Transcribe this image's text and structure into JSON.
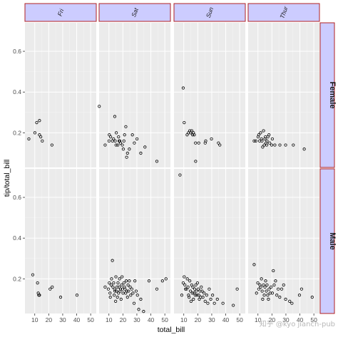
{
  "chart_data": {
    "type": "scatter",
    "facet_columns": [
      "Fri",
      "Sat",
      "Sun",
      "Thur"
    ],
    "facet_rows": [
      "Female",
      "Male"
    ],
    "xlabel": "total_bill",
    "ylabel": "tip/total_bill",
    "xlim": [
      3,
      54
    ],
    "ylim": [
      0.03,
      0.74
    ],
    "x_ticks": [
      10,
      20,
      30,
      40,
      50
    ],
    "y_ticks": [
      0.2,
      0.4,
      0.6
    ],
    "grid": true,
    "colors": {
      "panel_bg": "#ebebeb",
      "grid_major": "#ffffff",
      "strip_fill": "#ccccff",
      "strip_border": "#b22222",
      "point_stroke": "#000000"
    },
    "panels": [
      {
        "column": "Fri",
        "row": "Female",
        "points": [
          [
            5.8,
            0.17
          ],
          [
            10.1,
            0.2
          ],
          [
            11.4,
            0.25
          ],
          [
            13.4,
            0.26
          ],
          [
            13.4,
            0.19
          ],
          [
            14.3,
            0.18
          ],
          [
            15.4,
            0.16
          ],
          [
            22.3,
            0.14
          ]
        ]
      },
      {
        "column": "Sat",
        "row": "Female",
        "points": [
          [
            3.1,
            0.33
          ],
          [
            7.3,
            0.14
          ],
          [
            10.1,
            0.16
          ],
          [
            10.3,
            0.19
          ],
          [
            11.2,
            0.18
          ],
          [
            12.6,
            0.16
          ],
          [
            13.3,
            0.17
          ],
          [
            14.2,
            0.28
          ],
          [
            14.5,
            0.16
          ],
          [
            15.1,
            0.14
          ],
          [
            15.3,
            0.2
          ],
          [
            16.4,
            0.14
          ],
          [
            16.9,
            0.18
          ],
          [
            17.3,
            0.16
          ],
          [
            17.8,
            0.16
          ],
          [
            18.3,
            0.15
          ],
          [
            19.6,
            0.14
          ],
          [
            20.3,
            0.12
          ],
          [
            20.7,
            0.16
          ],
          [
            21.2,
            0.19
          ],
          [
            22.1,
            0.23
          ],
          [
            22.7,
            0.08
          ],
          [
            23.3,
            0.1
          ],
          [
            24.6,
            0.12
          ],
          [
            26.8,
            0.19
          ],
          [
            28.2,
            0.15
          ],
          [
            30.1,
            0.17
          ],
          [
            32.8,
            0.1
          ],
          [
            35.8,
            0.13
          ],
          [
            44.3,
            0.06
          ]
        ]
      },
      {
        "column": "Sun",
        "row": "Female",
        "points": [
          [
            9.6,
            0.42
          ],
          [
            10.3,
            0.25
          ],
          [
            12.4,
            0.19
          ],
          [
            13.4,
            0.2
          ],
          [
            14.3,
            0.21
          ],
          [
            14.9,
            0.2
          ],
          [
            15.7,
            0.21
          ],
          [
            16.3,
            0.19
          ],
          [
            16.9,
            0.2
          ],
          [
            17.5,
            0.19
          ],
          [
            18.4,
            0.15
          ],
          [
            18.5,
            0.06
          ],
          [
            20.7,
            0.15
          ],
          [
            25.3,
            0.15
          ],
          [
            25.7,
            0.16
          ],
          [
            29.8,
            0.17
          ],
          [
            34.8,
            0.15
          ],
          [
            35.8,
            0.14
          ]
        ]
      },
      {
        "column": "Thur",
        "row": "Female",
        "points": [
          [
            7.3,
            0.16
          ],
          [
            8.5,
            0.16
          ],
          [
            10.1,
            0.18
          ],
          [
            10.6,
            0.19
          ],
          [
            11.2,
            0.16
          ],
          [
            11.9,
            0.2
          ],
          [
            12.5,
            0.17
          ],
          [
            12.9,
            0.16
          ],
          [
            13.4,
            0.13
          ],
          [
            14.0,
            0.21
          ],
          [
            14.5,
            0.14
          ],
          [
            15.0,
            0.17
          ],
          [
            15.4,
            0.18
          ],
          [
            15.8,
            0.15
          ],
          [
            16.3,
            0.14
          ],
          [
            16.5,
            0.16
          ],
          [
            17.1,
            0.18
          ],
          [
            17.9,
            0.19
          ],
          [
            18.4,
            0.15
          ],
          [
            19.8,
            0.14
          ],
          [
            20.3,
            0.17
          ],
          [
            22.1,
            0.14
          ],
          [
            25.7,
            0.14
          ],
          [
            29.8,
            0.14
          ],
          [
            35.3,
            0.14
          ],
          [
            43.1,
            0.12
          ]
        ]
      },
      {
        "column": "Fri",
        "row": "Male",
        "points": [
          [
            8.6,
            0.22
          ],
          [
            12.0,
            0.18
          ],
          [
            12.5,
            0.13
          ],
          [
            12.9,
            0.12
          ],
          [
            13.4,
            0.12
          ],
          [
            21.0,
            0.15
          ],
          [
            22.5,
            0.16
          ],
          [
            28.5,
            0.11
          ],
          [
            40.2,
            0.12
          ]
        ]
      },
      {
        "column": "Sat",
        "row": "Male",
        "points": [
          [
            7.3,
            0.16
          ],
          [
            9.6,
            0.15
          ],
          [
            10.3,
            0.18
          ],
          [
            10.8,
            0.13
          ],
          [
            11.0,
            0.11
          ],
          [
            11.6,
            0.17
          ],
          [
            11.9,
            0.2
          ],
          [
            12.5,
            0.29
          ],
          [
            12.9,
            0.16
          ],
          [
            13.4,
            0.18
          ],
          [
            13.8,
            0.12
          ],
          [
            14.0,
            0.15
          ],
          [
            14.3,
            0.14
          ],
          [
            14.8,
            0.09
          ],
          [
            15.0,
            0.21
          ],
          [
            15.4,
            0.14
          ],
          [
            15.8,
            0.16
          ],
          [
            16.1,
            0.11
          ],
          [
            16.5,
            0.18
          ],
          [
            16.9,
            0.13
          ],
          [
            17.3,
            0.16
          ],
          [
            17.6,
            0.2
          ],
          [
            18.0,
            0.14
          ],
          [
            18.3,
            0.15
          ],
          [
            18.7,
            0.1
          ],
          [
            19.1,
            0.17
          ],
          [
            19.4,
            0.21
          ],
          [
            19.8,
            0.15
          ],
          [
            20.1,
            0.13
          ],
          [
            20.7,
            0.18
          ],
          [
            21.1,
            0.16
          ],
          [
            21.5,
            0.15
          ],
          [
            22.0,
            0.13
          ],
          [
            22.4,
            0.19
          ],
          [
            22.8,
            0.14
          ],
          [
            23.3,
            0.11
          ],
          [
            23.7,
            0.17
          ],
          [
            24.1,
            0.14
          ],
          [
            24.6,
            0.19
          ],
          [
            25.2,
            0.16
          ],
          [
            25.6,
            0.12
          ],
          [
            26.4,
            0.15
          ],
          [
            27.2,
            0.13
          ],
          [
            28.0,
            0.08
          ],
          [
            28.6,
            0.19
          ],
          [
            29.5,
            0.14
          ],
          [
            30.4,
            0.12
          ],
          [
            31.3,
            0.05
          ],
          [
            32.8,
            0.1
          ],
          [
            34.8,
            0.04
          ],
          [
            38.7,
            0.19
          ],
          [
            44.3,
            0.15
          ],
          [
            48.3,
            0.19
          ],
          [
            50.8,
            0.2
          ]
        ]
      },
      {
        "column": "Sun",
        "row": "Male",
        "points": [
          [
            7.3,
            0.71
          ],
          [
            8.6,
            0.12
          ],
          [
            9.6,
            0.18
          ],
          [
            10.3,
            0.21
          ],
          [
            10.8,
            0.17
          ],
          [
            11.2,
            0.15
          ],
          [
            12.0,
            0.15
          ],
          [
            12.5,
            0.2
          ],
          [
            13.0,
            0.16
          ],
          [
            13.4,
            0.12
          ],
          [
            13.8,
            0.11
          ],
          [
            14.3,
            0.19
          ],
          [
            14.8,
            0.14
          ],
          [
            15.2,
            0.09
          ],
          [
            15.7,
            0.17
          ],
          [
            16.1,
            0.13
          ],
          [
            16.5,
            0.16
          ],
          [
            16.9,
            0.1
          ],
          [
            17.3,
            0.13
          ],
          [
            17.8,
            0.15
          ],
          [
            18.2,
            0.12
          ],
          [
            18.6,
            0.17
          ],
          [
            19.0,
            0.14
          ],
          [
            19.4,
            0.12
          ],
          [
            19.8,
            0.18
          ],
          [
            20.3,
            0.15
          ],
          [
            20.7,
            0.12
          ],
          [
            21.1,
            0.1
          ],
          [
            21.6,
            0.14
          ],
          [
            22.0,
            0.11
          ],
          [
            22.5,
            0.16
          ],
          [
            23.1,
            0.14
          ],
          [
            23.7,
            0.11
          ],
          [
            24.5,
            0.13
          ],
          [
            25.3,
            0.09
          ],
          [
            26.4,
            0.12
          ],
          [
            27.2,
            0.08
          ],
          [
            28.2,
            0.15
          ],
          [
            29.3,
            0.1
          ],
          [
            30.6,
            0.12
          ],
          [
            31.9,
            0.08
          ],
          [
            34.0,
            0.1
          ],
          [
            38.0,
            0.08
          ],
          [
            45.4,
            0.07
          ],
          [
            48.2,
            0.15
          ]
        ]
      },
      {
        "column": "Thur",
        "row": "Male",
        "points": [
          [
            7.3,
            0.27
          ],
          [
            9.0,
            0.13
          ],
          [
            9.9,
            0.18
          ],
          [
            10.6,
            0.15
          ],
          [
            11.4,
            0.17
          ],
          [
            12.0,
            0.16
          ],
          [
            12.5,
            0.2
          ],
          [
            13.0,
            0.14
          ],
          [
            13.4,
            0.1
          ],
          [
            14.0,
            0.17
          ],
          [
            14.5,
            0.12
          ],
          [
            15.0,
            0.16
          ],
          [
            15.5,
            0.19
          ],
          [
            16.0,
            0.14
          ],
          [
            16.5,
            0.17
          ],
          [
            17.0,
            0.12
          ],
          [
            17.5,
            0.1
          ],
          [
            18.0,
            0.15
          ],
          [
            18.7,
            0.13
          ],
          [
            19.4,
            0.16
          ],
          [
            20.3,
            0.13
          ],
          [
            21.0,
            0.24
          ],
          [
            21.6,
            0.17
          ],
          [
            22.6,
            0.19
          ],
          [
            23.5,
            0.12
          ],
          [
            24.5,
            0.15
          ],
          [
            25.6,
            0.11
          ],
          [
            27.0,
            0.15
          ],
          [
            28.4,
            0.17
          ],
          [
            29.8,
            0.1
          ],
          [
            32.7,
            0.09
          ],
          [
            34.3,
            0.08
          ],
          [
            39.7,
            0.12
          ],
          [
            41.2,
            0.15
          ],
          [
            48.8,
            0.11
          ]
        ]
      }
    ]
  },
  "watermark": "知乎 @kyo jiancn-pub"
}
